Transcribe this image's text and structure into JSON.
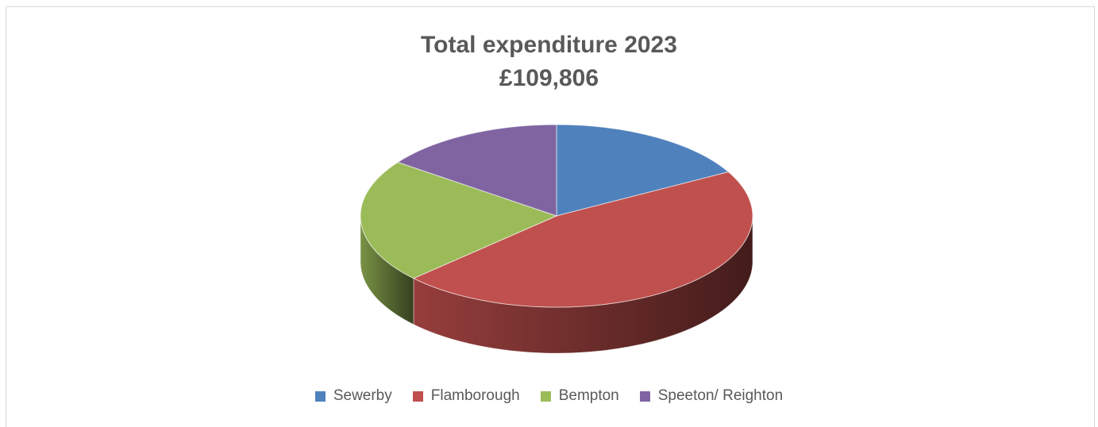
{
  "title": {
    "line1": "Total expenditure 2023",
    "line2": "£109,806"
  },
  "chart_data": {
    "type": "pie",
    "style": "3d",
    "legend_position": "bottom",
    "categories": [
      "Sewerby",
      "Flamborough",
      "Bempton",
      "Speeton/ Reighton"
    ],
    "values": [
      17,
      46,
      22,
      15
    ],
    "value_unit": "percent (estimated)",
    "colors": [
      "#4F81BD",
      "#C0504D",
      "#9BBB59",
      "#8064A2"
    ]
  }
}
